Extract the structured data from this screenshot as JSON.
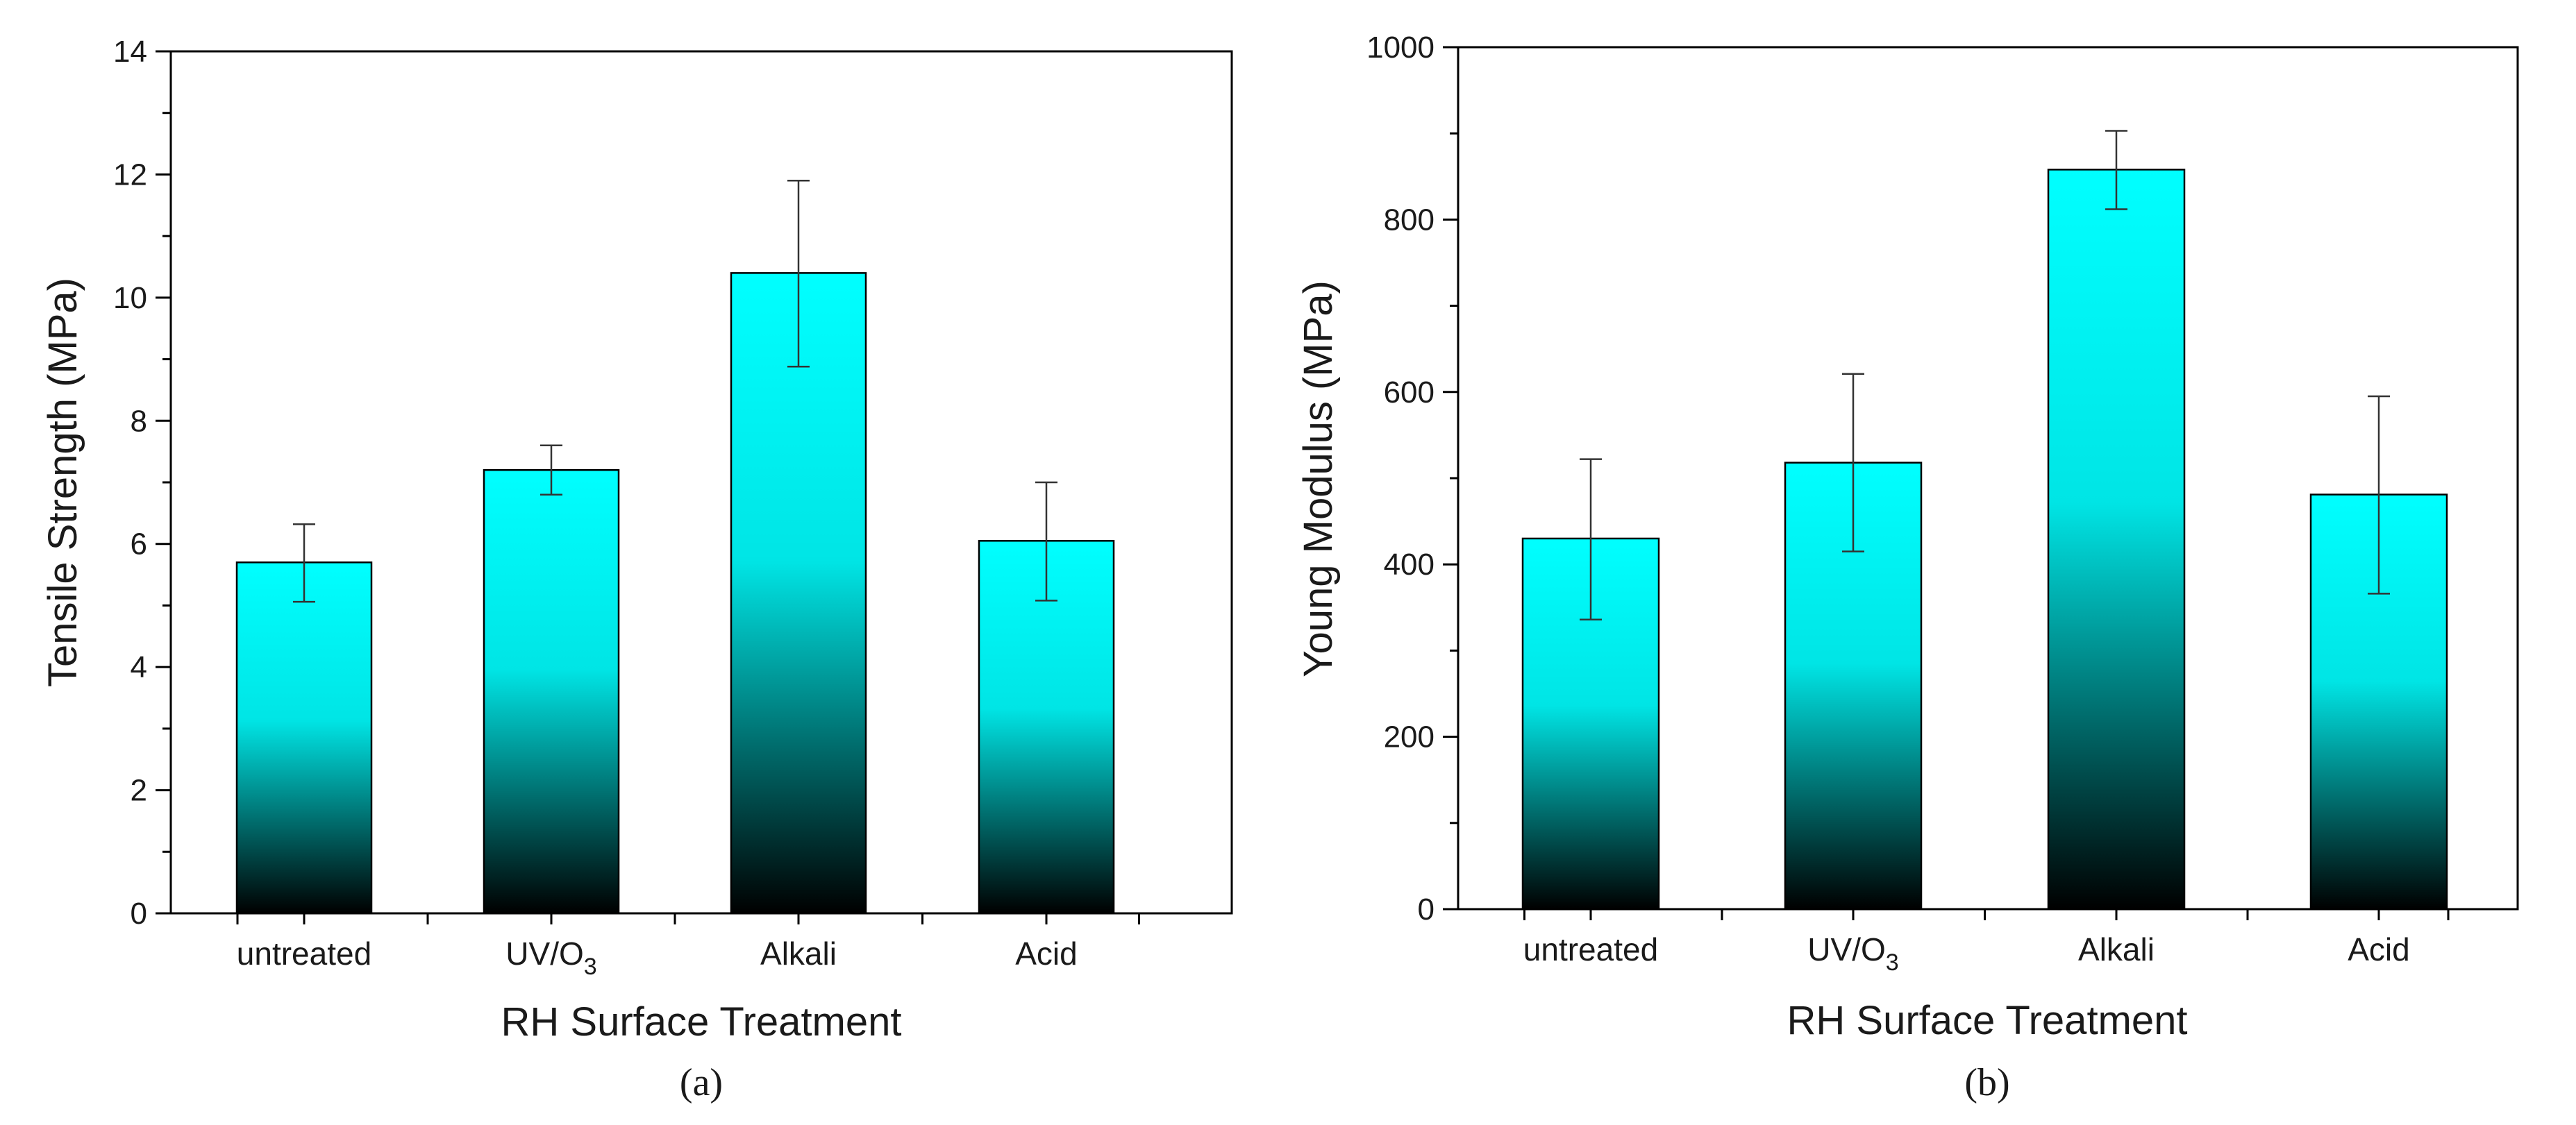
{
  "chart_data": [
    {
      "type": "bar",
      "panel_label": "(a)",
      "categories": [
        "untreated",
        "UV/O3",
        "Alkali",
        "Acid"
      ],
      "category_labels": [
        {
          "main": "untreated",
          "sub": ""
        },
        {
          "main": "UV/O",
          "sub": "3"
        },
        {
          "main": "Alkali",
          "sub": ""
        },
        {
          "main": "Acid",
          "sub": ""
        }
      ],
      "values": [
        5.7,
        7.2,
        10.4,
        6.05
      ],
      "error_high": [
        6.32,
        7.6,
        11.9,
        7.0
      ],
      "error_low": [
        5.06,
        6.8,
        8.88,
        5.08
      ],
      "xlabel": "RH Surface Treatment",
      "ylabel": "Tensile Strength (MPa)",
      "ylim": [
        0,
        14
      ],
      "yticks": [
        0,
        2,
        4,
        6,
        8,
        10,
        12,
        14
      ],
      "yticks_minor": [
        1,
        3,
        5,
        7,
        9,
        11,
        13
      ],
      "grid": false,
      "bar_gradient": {
        "top": "#00ffff",
        "middle": "#00e5e5",
        "bottom": "#000000"
      }
    },
    {
      "type": "bar",
      "panel_label": "(b)",
      "categories": [
        "untreated",
        "UV/O3",
        "Alkali",
        "Acid"
      ],
      "category_labels": [
        {
          "main": "untreated",
          "sub": ""
        },
        {
          "main": "UV/O",
          "sub": "3"
        },
        {
          "main": "Alkali",
          "sub": ""
        },
        {
          "main": "Acid",
          "sub": ""
        }
      ],
      "values": [
        430,
        518,
        858,
        481
      ],
      "error_high": [
        522,
        621,
        903,
        595
      ],
      "error_low": [
        336,
        415,
        812,
        366
      ],
      "xlabel": "RH Surface Treatment",
      "ylabel": "Young Modulus (MPa)",
      "ylim": [
        0,
        1000
      ],
      "yticks": [
        0,
        200,
        400,
        600,
        800,
        1000
      ],
      "yticks_minor": [
        100,
        300,
        500,
        700,
        900
      ],
      "grid": false,
      "bar_gradient": {
        "top": "#00ffff",
        "middle": "#00e5e5",
        "bottom": "#000000"
      }
    }
  ]
}
